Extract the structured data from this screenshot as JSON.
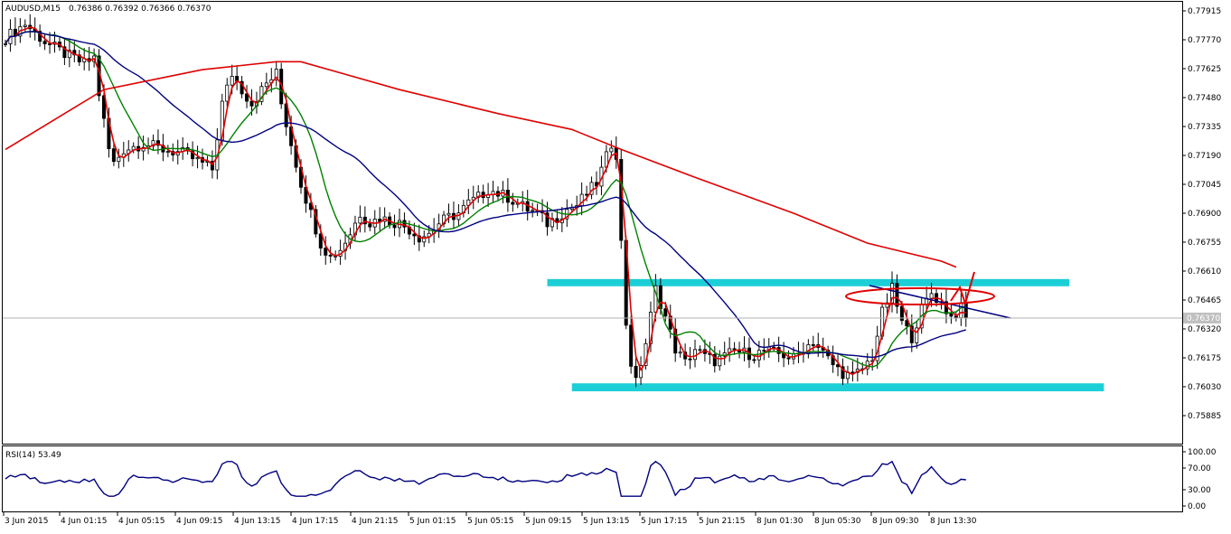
{
  "header": {
    "symbol": "AUDUSD,M15",
    "quote": "0.76386 0.76392 0.76366 0.76370"
  },
  "price_axis": {
    "ticks": [
      "0.77915",
      "0.77770",
      "0.77625",
      "0.77480",
      "0.77335",
      "0.77190",
      "0.77045",
      "0.76900",
      "0.76755",
      "0.76610",
      "0.76465",
      "0.76320",
      "0.76175",
      "0.76030",
      "0.75885"
    ],
    "current_price_label": "0.76370"
  },
  "rsi": {
    "label": "RSI(14) 53.49",
    "ticks": [
      "100.00",
      "70.00",
      "30.00",
      "0.00"
    ]
  },
  "time_axis": {
    "ticks": [
      "3 Jun 2015",
      "4 Jun 01:15",
      "4 Jun 05:15",
      "4 Jun 09:15",
      "4 Jun 13:15",
      "4 Jun 17:15",
      "4 Jun 21:15",
      "5 Jun 01:15",
      "5 Jun 05:15",
      "5 Jun 09:15",
      "5 Jun 13:15",
      "5 Jun 17:15",
      "5 Jun 21:15",
      "8 Jun 01:30",
      "8 Jun 05:30",
      "8 Jun 09:30",
      "8 Jun 13:30"
    ]
  },
  "colors": {
    "bull_candle": "#ffffff",
    "bear_candle": "#000000",
    "ma_fast": "#e00000",
    "ma_mid": "#008000",
    "ma_slow": "#000080",
    "ma_long": "#e00000",
    "zone": "#1ccfd6",
    "rsi_line": "#000080"
  },
  "chart_data": {
    "type": "candlestick",
    "symbol": "AUDUSD",
    "timeframe": "M15",
    "ylim": [
      0.758,
      0.78
    ],
    "close_path": [
      [
        0,
        0.7778
      ],
      [
        4,
        0.7785
      ],
      [
        8,
        0.7776
      ],
      [
        12,
        0.777
      ],
      [
        16,
        0.7765
      ],
      [
        18,
        0.7768
      ],
      [
        19,
        0.775
      ],
      [
        21,
        0.7722
      ],
      [
        22,
        0.7715
      ],
      [
        24,
        0.7722
      ],
      [
        28,
        0.7725
      ],
      [
        32,
        0.7722
      ],
      [
        36,
        0.772
      ],
      [
        40,
        0.7715
      ],
      [
        42,
        0.7712
      ],
      [
        44,
        0.7745
      ],
      [
        46,
        0.776
      ],
      [
        48,
        0.7752
      ],
      [
        50,
        0.7745
      ],
      [
        53,
        0.7755
      ],
      [
        55,
        0.776
      ],
      [
        56,
        0.7745
      ],
      [
        58,
        0.7725
      ],
      [
        60,
        0.7705
      ],
      [
        62,
        0.769
      ],
      [
        64,
        0.7675
      ],
      [
        66,
        0.7668
      ],
      [
        68,
        0.7672
      ],
      [
        70,
        0.768
      ],
      [
        72,
        0.769
      ],
      [
        74,
        0.7685
      ],
      [
        76,
        0.7688
      ],
      [
        78,
        0.7686
      ],
      [
        80,
        0.7685
      ],
      [
        82,
        0.7682
      ],
      [
        84,
        0.7678
      ],
      [
        86,
        0.768
      ],
      [
        88,
        0.7685
      ],
      [
        90,
        0.7688
      ],
      [
        92,
        0.769
      ],
      [
        94,
        0.7695
      ],
      [
        96,
        0.7698
      ],
      [
        98,
        0.7702
      ],
      [
        100,
        0.77
      ],
      [
        102,
        0.7698
      ],
      [
        104,
        0.7695
      ],
      [
        106,
        0.7692
      ],
      [
        108,
        0.769
      ],
      [
        110,
        0.7685
      ],
      [
        112,
        0.7688
      ],
      [
        114,
        0.7692
      ],
      [
        116,
        0.7694
      ],
      [
        118,
        0.77
      ],
      [
        120,
        0.7705
      ],
      [
        122,
        0.7718
      ],
      [
        123,
        0.7725
      ],
      [
        124,
        0.772
      ],
      [
        125,
        0.7675
      ],
      [
        126,
        0.7635
      ],
      [
        127,
        0.7615
      ],
      [
        128,
        0.7605
      ],
      [
        130,
        0.7625
      ],
      [
        132,
        0.7652
      ],
      [
        134,
        0.7638
      ],
      [
        136,
        0.7622
      ],
      [
        138,
        0.7615
      ],
      [
        140,
        0.7622
      ],
      [
        142,
        0.7618
      ],
      [
        144,
        0.7616
      ],
      [
        146,
        0.7618
      ],
      [
        148,
        0.7621
      ],
      [
        150,
        0.762
      ],
      [
        152,
        0.7619
      ],
      [
        154,
        0.7621
      ],
      [
        156,
        0.762
      ],
      [
        158,
        0.7619
      ],
      [
        160,
        0.7617
      ],
      [
        162,
        0.7622
      ],
      [
        164,
        0.7626
      ],
      [
        166,
        0.762
      ],
      [
        168,
        0.7614
      ],
      [
        170,
        0.761
      ],
      [
        172,
        0.7608
      ],
      [
        174,
        0.7612
      ],
      [
        176,
        0.7618
      ],
      [
        178,
        0.764
      ],
      [
        180,
        0.7652
      ],
      [
        182,
        0.7635
      ],
      [
        184,
        0.7628
      ],
      [
        186,
        0.7642
      ],
      [
        188,
        0.765
      ],
      [
        190,
        0.7645
      ],
      [
        192,
        0.7638
      ],
      [
        194,
        0.7642
      ],
      [
        195,
        0.7637
      ]
    ],
    "zones": [
      {
        "from_bar": 110,
        "to_bar": 216,
        "low": 0.76535,
        "high": 0.7657
      },
      {
        "from_bar": 115,
        "to_bar": 223,
        "low": 0.76007,
        "high": 0.76047
      }
    ]
  }
}
